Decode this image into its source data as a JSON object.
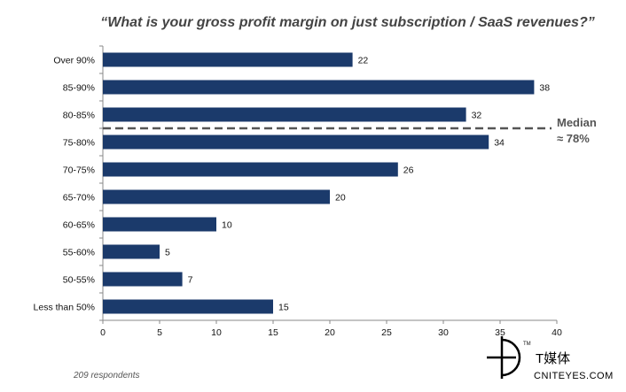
{
  "chart_data": {
    "type": "bar",
    "orientation": "horizontal",
    "title": "“What is your gross profit margin on just subscription / SaaS revenues?”",
    "categories": [
      "Over 90%",
      "85-90%",
      "80-85%",
      "75-80%",
      "70-75%",
      "65-70%",
      "60-65%",
      "55-60%",
      "50-55%",
      "Less than 50%"
    ],
    "values": [
      22,
      38,
      32,
      34,
      26,
      20,
      10,
      5,
      7,
      15
    ],
    "xlim": [
      0,
      40
    ],
    "xticks": [
      0,
      5,
      10,
      15,
      20,
      25,
      30,
      35,
      40
    ],
    "bar_color": "#1b3a6b",
    "grid": false,
    "annotations": {
      "median_label": "Median",
      "median_value": "≈ 78%"
    }
  },
  "footnote": "209 respondents",
  "watermark": {
    "name_cn": "T媒体",
    "site": "CNITEYES.COM",
    "tm": "TM"
  }
}
